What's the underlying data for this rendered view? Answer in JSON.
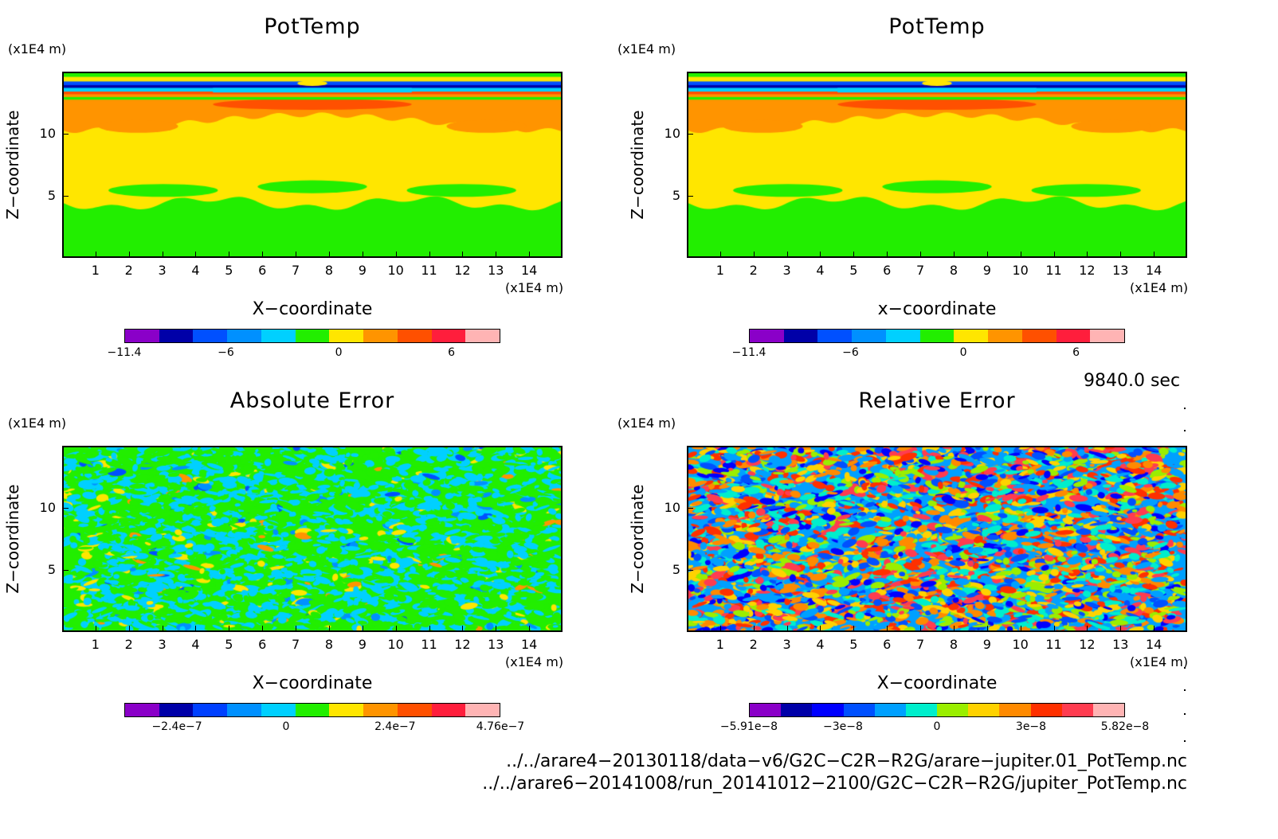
{
  "panels": [
    {
      "title": "PotTemp",
      "yunit": "(x1E4 m)",
      "ylabel": "Z−coordinate",
      "xlabel": "X−coordinate",
      "xunit": "(x1E4 m)",
      "xticks": [
        "1",
        "2",
        "3",
        "4",
        "5",
        "6",
        "7",
        "8",
        "9",
        "10",
        "11",
        "12",
        "13",
        "14"
      ],
      "yticks": [
        "5",
        "10"
      ],
      "cbar_colors": [
        "#8a00c8",
        "#0000a8",
        "#0050ff",
        "#0090ff",
        "#00d0ff",
        "#22ee00",
        "#ffe600",
        "#ff9400",
        "#ff5000",
        "#ff1e3c",
        "#ffb4b4"
      ],
      "cbar_ticks": [
        "−11.4",
        "−6",
        "0",
        "6"
      ],
      "field": "pot"
    },
    {
      "title": "PotTemp",
      "yunit": "(x1E4 m)",
      "ylabel": "Z−coordinate",
      "xlabel": "x−coordinate",
      "xunit": "(x1E4 m)",
      "xticks": [
        "1",
        "2",
        "3",
        "4",
        "5",
        "6",
        "7",
        "8",
        "9",
        "10",
        "11",
        "12",
        "13",
        "14"
      ],
      "yticks": [
        "5",
        "10"
      ],
      "cbar_colors": [
        "#8a00c8",
        "#0000a8",
        "#0050ff",
        "#0090ff",
        "#00d0ff",
        "#22ee00",
        "#ffe600",
        "#ff9400",
        "#ff5000",
        "#ff1e3c",
        "#ffb4b4"
      ],
      "cbar_ticks": [
        "−11.4",
        "−6",
        "0",
        "6"
      ],
      "field": "pot"
    },
    {
      "title": "Absolute Error",
      "yunit": "(x1E4 m)",
      "ylabel": "Z−coordinate",
      "xlabel": "X−coordinate",
      "xunit": "(x1E4 m)",
      "xticks": [
        "1",
        "2",
        "3",
        "4",
        "5",
        "6",
        "7",
        "8",
        "9",
        "10",
        "11",
        "12",
        "13",
        "14"
      ],
      "yticks": [
        "5",
        "10"
      ],
      "cbar_colors": [
        "#8a00c8",
        "#0000a8",
        "#0040ff",
        "#0090ff",
        "#00d0ff",
        "#22ee00",
        "#ffe600",
        "#ff9400",
        "#ff5000",
        "#ff1e3c",
        "#ffb4b4"
      ],
      "cbar_ticks": [
        "−2.4e−7",
        "0",
        "2.4e−7",
        "4.76e−7"
      ],
      "field": "abs"
    },
    {
      "title": "Relative Error",
      "yunit": "(x1E4 m)",
      "ylabel": "Z−coordinate",
      "xlabel": "X−coordinate",
      "xunit": "(x1E4 m)",
      "xticks": [
        "1",
        "2",
        "3",
        "4",
        "5",
        "6",
        "7",
        "8",
        "9",
        "10",
        "11",
        "12",
        "13",
        "14"
      ],
      "yticks": [
        "5",
        "10"
      ],
      "cbar_colors": [
        "#8a00c8",
        "#0000a8",
        "#0000ff",
        "#0050ff",
        "#00a0ff",
        "#00eecc",
        "#9aee00",
        "#ffd200",
        "#ff8a00",
        "#ff3000",
        "#ff3c50",
        "#ffb4b4"
      ],
      "cbar_ticks": [
        "−5.91e−8",
        "−3e−8",
        "0",
        "3e−8",
        "5.82e−8"
      ],
      "field": "rel"
    }
  ],
  "time_label": "9840.0 sec",
  "paths": [
    "../../arare4−20130118/data−v6/G2C−C2R−R2G/arare−jupiter.01_PotTemp.nc",
    "../../arare6−20141008/run_20141012−2100/G2C−C2R−R2G/jupiter_PotTemp.nc"
  ],
  "chart_data": [
    {
      "type": "heatmap",
      "title": "PotTemp",
      "xlabel": "X−coordinate",
      "ylabel": "Z−coordinate",
      "xlim": [
        0,
        15
      ],
      "ylim": [
        0,
        15
      ],
      "x_unit": "(x1E4 m)",
      "y_unit": "(x1E4 m)",
      "colorbar_ticks": [
        -11.4,
        -6,
        0,
        6
      ]
    },
    {
      "type": "heatmap",
      "title": "PotTemp",
      "xlabel": "x−coordinate",
      "ylabel": "Z−coordinate",
      "xlim": [
        0,
        15
      ],
      "ylim": [
        0,
        15
      ],
      "x_unit": "(x1E4 m)",
      "y_unit": "(x1E4 m)",
      "colorbar_ticks": [
        -11.4,
        -6,
        0,
        6
      ]
    },
    {
      "type": "heatmap",
      "title": "Absolute Error",
      "xlabel": "X−coordinate",
      "ylabel": "Z−coordinate",
      "xlim": [
        0,
        15
      ],
      "ylim": [
        0,
        15
      ],
      "x_unit": "(x1E4 m)",
      "y_unit": "(x1E4 m)",
      "colorbar_ticks": [
        -2.4e-07,
        0,
        2.4e-07,
        4.76e-07
      ]
    },
    {
      "type": "heatmap",
      "title": "Relative Error",
      "xlabel": "X−coordinate",
      "ylabel": "Z−coordinate",
      "xlim": [
        0,
        15
      ],
      "ylim": [
        0,
        15
      ],
      "x_unit": "(x1E4 m)",
      "y_unit": "(x1E4 m)",
      "colorbar_ticks": [
        -5.91e-08,
        -3e-08,
        0,
        3e-08,
        5.82e-08
      ]
    }
  ]
}
